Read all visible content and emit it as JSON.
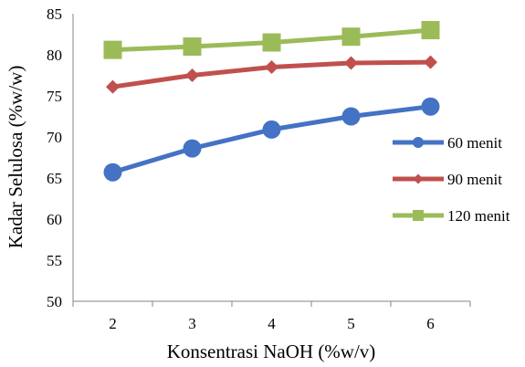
{
  "chart_data": {
    "type": "line",
    "title": "",
    "xlabel": "Konsentrasi NaOH (%w/v)",
    "ylabel": "Kadar Selulosa (%w/w)",
    "x": [
      2,
      3,
      4,
      5,
      6
    ],
    "ylim": [
      50,
      85
    ],
    "yticks": [
      50,
      55,
      60,
      65,
      70,
      75,
      80,
      85
    ],
    "grid": false,
    "legend": "right",
    "series": [
      {
        "name": "60 menit",
        "values": [
          65.7,
          68.6,
          70.9,
          72.5,
          73.7
        ],
        "color": "#4472C4",
        "marker": "circle"
      },
      {
        "name": "90 menit",
        "values": [
          76.1,
          77.5,
          78.5,
          79.0,
          79.1
        ],
        "color": "#C0504D",
        "marker": "diamond"
      },
      {
        "name": "120 menit",
        "values": [
          80.6,
          81.0,
          81.5,
          82.2,
          83.0
        ],
        "color": "#9BBB59",
        "marker": "square"
      }
    ]
  }
}
